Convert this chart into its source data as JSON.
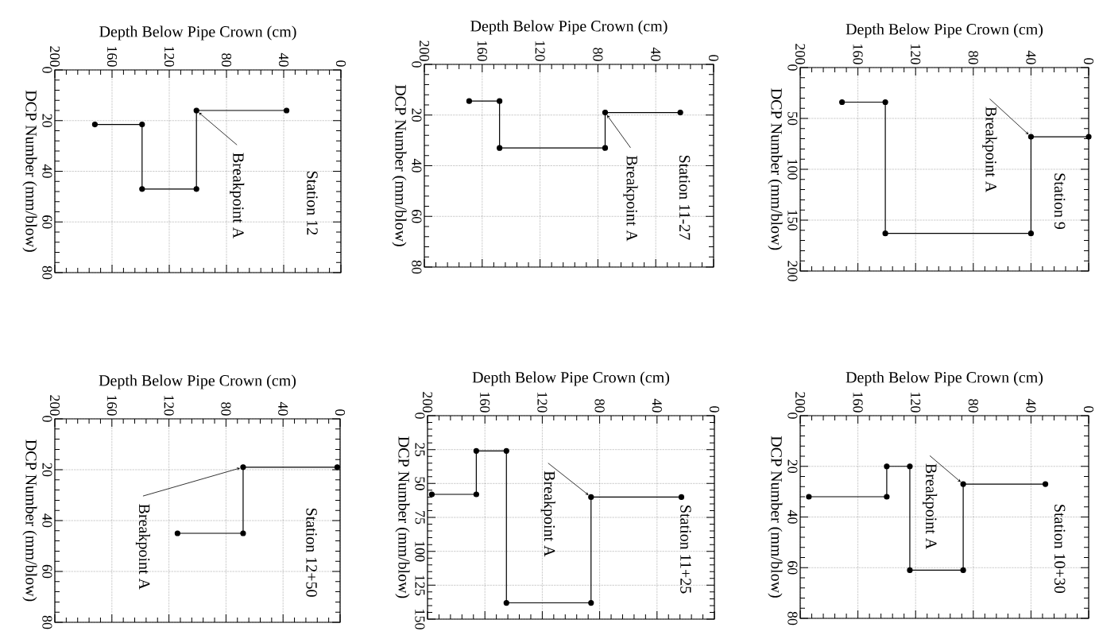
{
  "chart_data": [
    {
      "type": "line",
      "title": "Station 12",
      "xlabel": "Depth Below Pipe Crown (cm)",
      "ylabel": "DCP Number (mm/blow)",
      "xlim": [
        200,
        0
      ],
      "ylim": [
        80,
        0
      ],
      "xticks": [
        200,
        160,
        120,
        80,
        40,
        0
      ],
      "yticks": [
        0,
        20,
        40,
        60,
        80
      ],
      "grid": true,
      "marker": "circle",
      "color": "#000000",
      "x": [
        38,
        101,
        101,
        139,
        139,
        172
      ],
      "values": [
        16,
        16,
        47,
        47,
        21.5,
        21.5
      ],
      "annotations": [
        {
          "text": "Breakpoint A",
          "x": 101,
          "y": 16
        }
      ]
    },
    {
      "type": "line",
      "title": "Station 11-27",
      "xlabel": "Depth Below Pipe Crown (cm)",
      "ylabel": "DCP Number (mm/blow)",
      "xlim": [
        200,
        0
      ],
      "ylim": [
        80,
        0
      ],
      "xticks": [
        200,
        160,
        120,
        80,
        40,
        0
      ],
      "yticks": [
        0,
        20,
        40,
        60,
        80
      ],
      "grid": true,
      "marker": "circle",
      "color": "#000000",
      "x": [
        23,
        75,
        75,
        148,
        148,
        169
      ],
      "values": [
        19,
        19,
        33,
        33,
        14.5,
        14.5
      ],
      "annotations": [
        {
          "text": "Breakpoint A",
          "x": 75,
          "y": 19
        }
      ]
    },
    {
      "type": "line",
      "title": "Station 9",
      "xlabel": "Depth Below Pipe Crown (cm)",
      "ylabel": "DCP Number (mm/blow)",
      "xlim": [
        200,
        0
      ],
      "ylim": [
        200,
        0
      ],
      "xticks": [
        200,
        160,
        120,
        80,
        40,
        0
      ],
      "yticks": [
        0,
        50,
        100,
        150,
        200
      ],
      "grid": true,
      "marker": "circle",
      "color": "#000000",
      "x": [
        0,
        40,
        40,
        141,
        141,
        171
      ],
      "values": [
        68,
        68,
        163,
        163,
        34,
        34
      ],
      "annotations": [
        {
          "text": "Breakpoint A",
          "x": 40,
          "y": 68
        }
      ]
    },
    {
      "type": "line",
      "title": "Station 12+50",
      "xlabel": "Depth Below Pipe Crown (cm)",
      "ylabel": "DCP Number (mm/blow)",
      "xlim": [
        200,
        0
      ],
      "ylim": [
        80,
        0
      ],
      "xticks": [
        200,
        160,
        120,
        80,
        40,
        0
      ],
      "yticks": [
        0,
        20,
        40,
        60,
        80
      ],
      "grid": true,
      "marker": "circle",
      "color": "#000000",
      "x": [
        2,
        68,
        68,
        114
      ],
      "values": [
        19,
        19,
        45,
        45
      ],
      "annotations": [
        {
          "text": "Breakpoint A",
          "x": 68,
          "y": 19
        }
      ]
    },
    {
      "type": "line",
      "title": "Station 11+25",
      "xlabel": "Depth Below Pipe Crown (cm)",
      "ylabel": "DCP Number (mm/blow)",
      "xlim": [
        200,
        0
      ],
      "ylim": [
        150,
        0
      ],
      "xticks": [
        200,
        160,
        120,
        80,
        40,
        0
      ],
      "yticks": [
        0,
        25,
        50,
        75,
        100,
        125,
        150
      ],
      "grid": true,
      "marker": "circle",
      "color": "#000000",
      "x": [
        23,
        86,
        86,
        145,
        145,
        166,
        166,
        197
      ],
      "values": [
        60,
        60,
        138,
        138,
        26,
        26,
        58,
        58
      ],
      "annotations": [
        {
          "text": "Breakpoint A",
          "x": 86,
          "y": 60
        }
      ]
    },
    {
      "type": "line",
      "title": "Station 10+30",
      "xlabel": "Depth Below Pipe Crown (cm)",
      "ylabel": "DCP Number (mm/blow)",
      "xlim": [
        200,
        0
      ],
      "ylim": [
        80,
        0
      ],
      "xticks": [
        200,
        160,
        120,
        80,
        40,
        0
      ],
      "yticks": [
        0,
        20,
        40,
        60,
        80
      ],
      "grid": true,
      "marker": "circle",
      "color": "#000000",
      "x": [
        30,
        87,
        87,
        124,
        124,
        140,
        140,
        194
      ],
      "values": [
        27,
        27,
        61,
        61,
        20,
        20,
        32,
        32
      ],
      "annotations": [
        {
          "text": "Breakpoint A",
          "x": 87,
          "y": 27
        }
      ]
    }
  ]
}
